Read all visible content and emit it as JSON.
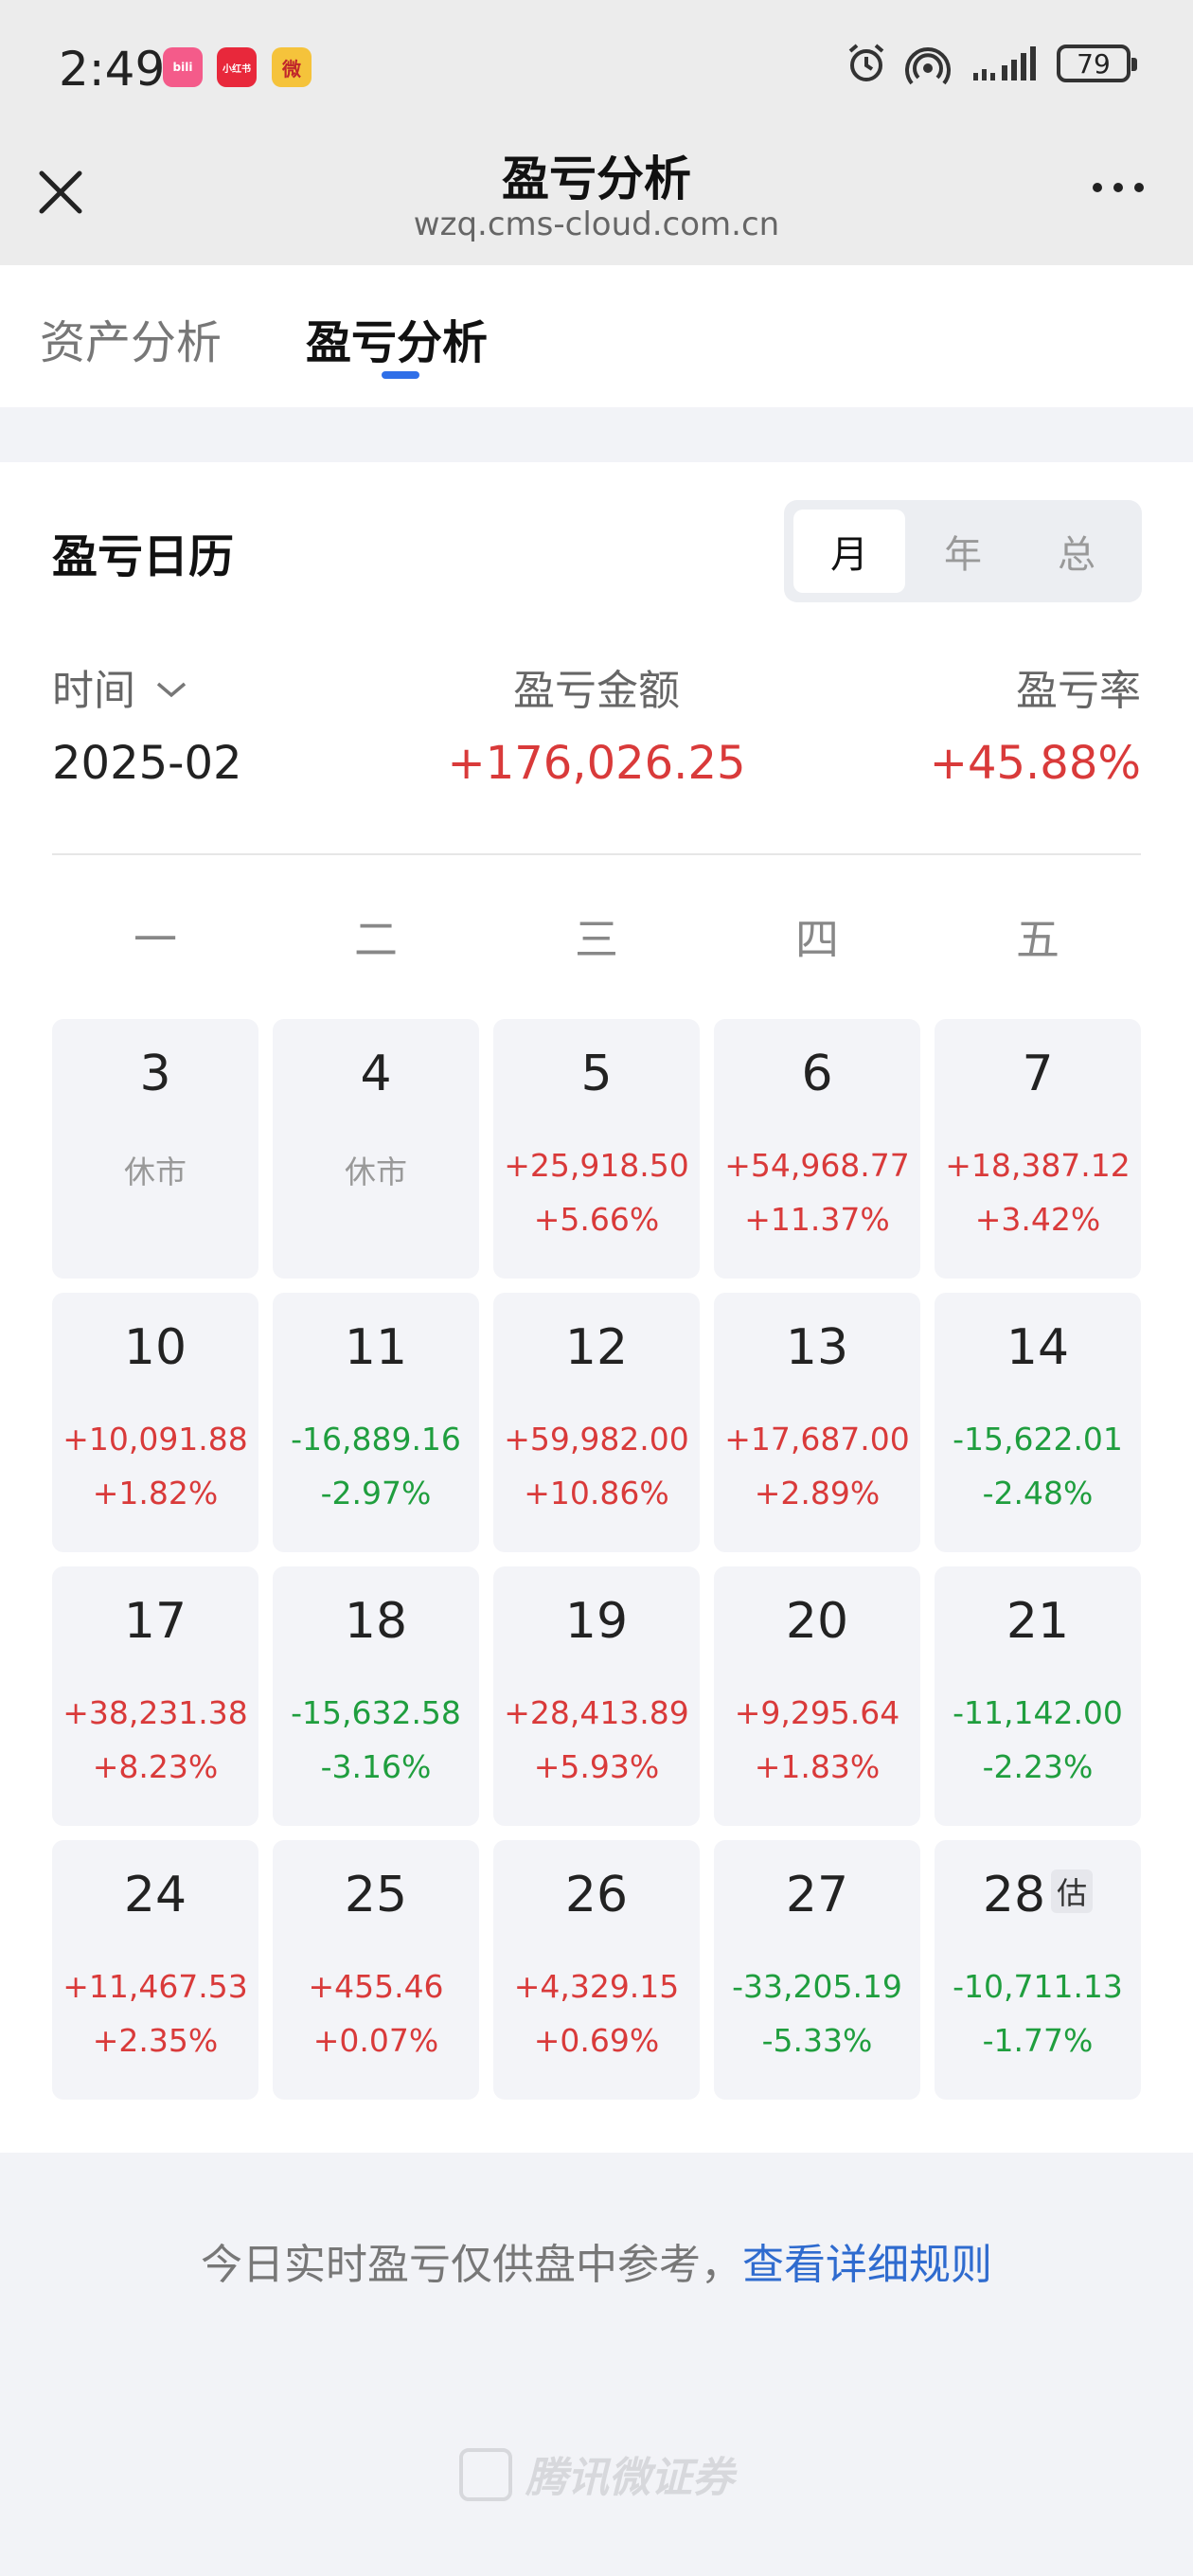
{
  "status_bar": {
    "time": "2:49",
    "apps": [
      {
        "name": "bilibili-icon",
        "label": "bili",
        "color": "#f45b8a"
      },
      {
        "name": "xiaohongshu-icon",
        "label": "小红书",
        "color": "#e8283b"
      },
      {
        "name": "weibo-icon",
        "label": "微",
        "color": "#f5c33b"
      }
    ],
    "battery": "79"
  },
  "nav": {
    "title": "盈亏分析",
    "url": "wzq.cms-cloud.com.cn"
  },
  "tabs": [
    {
      "label": "资产分析",
      "active": false
    },
    {
      "label": "盈亏分析",
      "active": true
    }
  ],
  "calendar": {
    "title": "盈亏日历",
    "segments": [
      "月",
      "年",
      "总"
    ],
    "active_segment": "月",
    "time_label": "时间",
    "amount_label": "盈亏金额",
    "rate_label": "盈亏率",
    "period": "2025-02",
    "total_amount": "+176,026.25",
    "total_rate": "+45.88%",
    "weekdays": [
      "一",
      "二",
      "三",
      "四",
      "五"
    ],
    "rest_label": "休市",
    "estimate_badge": "估",
    "days": [
      {
        "day": "3",
        "amount": "休市",
        "rate": "",
        "type": "rest"
      },
      {
        "day": "4",
        "amount": "休市",
        "rate": "",
        "type": "rest"
      },
      {
        "day": "5",
        "amount": "+25,918.50",
        "rate": "+5.66%",
        "type": "up"
      },
      {
        "day": "6",
        "amount": "+54,968.77",
        "rate": "+11.37%",
        "type": "up"
      },
      {
        "day": "7",
        "amount": "+18,387.12",
        "rate": "+3.42%",
        "type": "up"
      },
      {
        "day": "10",
        "amount": "+10,091.88",
        "rate": "+1.82%",
        "type": "up"
      },
      {
        "day": "11",
        "amount": "-16,889.16",
        "rate": "-2.97%",
        "type": "down"
      },
      {
        "day": "12",
        "amount": "+59,982.00",
        "rate": "+10.86%",
        "type": "up"
      },
      {
        "day": "13",
        "amount": "+17,687.00",
        "rate": "+2.89%",
        "type": "up"
      },
      {
        "day": "14",
        "amount": "-15,622.01",
        "rate": "-2.48%",
        "type": "down"
      },
      {
        "day": "17",
        "amount": "+38,231.38",
        "rate": "+8.23%",
        "type": "up"
      },
      {
        "day": "18",
        "amount": "-15,632.58",
        "rate": "-3.16%",
        "type": "down"
      },
      {
        "day": "19",
        "amount": "+28,413.89",
        "rate": "+5.93%",
        "type": "up"
      },
      {
        "day": "20",
        "amount": "+9,295.64",
        "rate": "+1.83%",
        "type": "up"
      },
      {
        "day": "21",
        "amount": "-11,142.00",
        "rate": "-2.23%",
        "type": "down"
      },
      {
        "day": "24",
        "amount": "+11,467.53",
        "rate": "+2.35%",
        "type": "up"
      },
      {
        "day": "25",
        "amount": "+455.46",
        "rate": "+0.07%",
        "type": "up"
      },
      {
        "day": "26",
        "amount": "+4,329.15",
        "rate": "+0.69%",
        "type": "up"
      },
      {
        "day": "27",
        "amount": "-33,205.19",
        "rate": "-5.33%",
        "type": "down"
      },
      {
        "day": "28",
        "amount": "-10,711.13",
        "rate": "-1.77%",
        "type": "down",
        "estimated": true
      }
    ]
  },
  "notice": {
    "text": "今日实时盈亏仅供盘中参考，",
    "link": "查看详细规则"
  },
  "footer": {
    "brand": "腾讯微证券"
  },
  "colors": {
    "up": "#d93a3a",
    "down": "#1f9e3e",
    "accent": "#2f6fe8"
  }
}
